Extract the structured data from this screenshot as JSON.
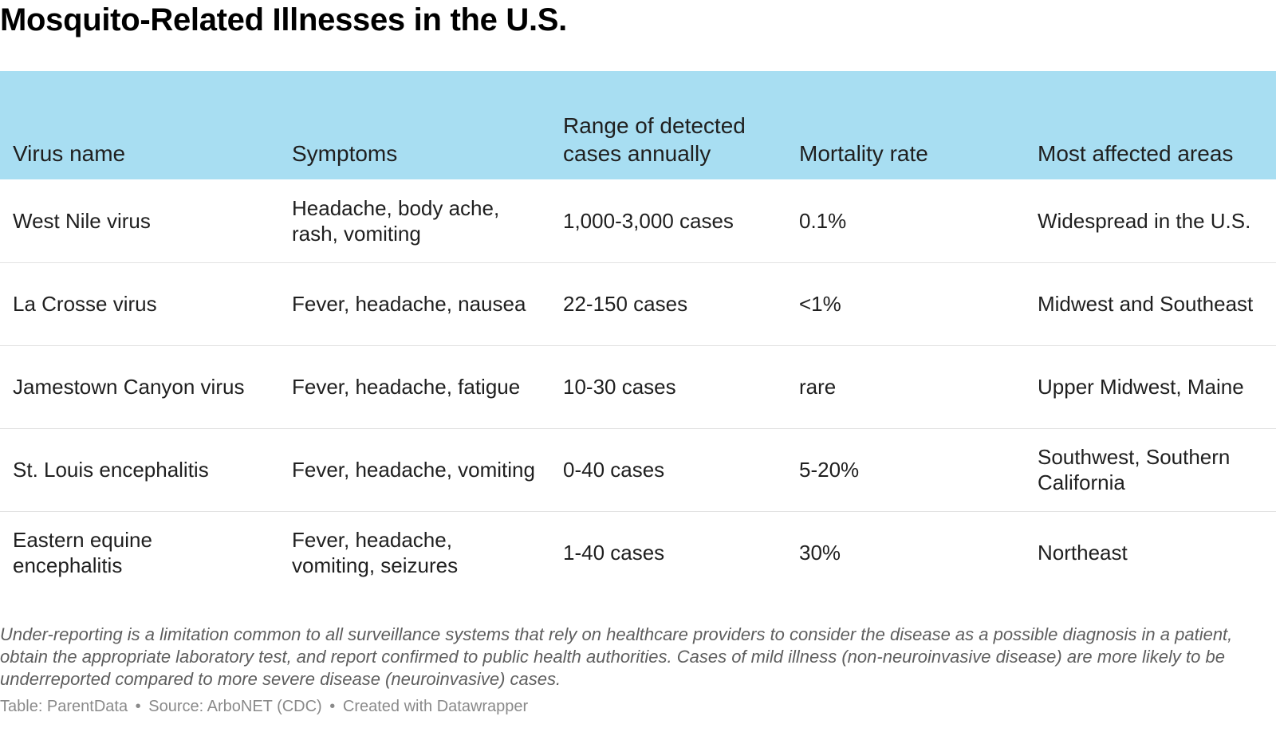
{
  "title": "Mosquito-Related Illnesses in the U.S.",
  "chart_data": {
    "type": "table",
    "title": "Mosquito-Related Illnesses in the U.S.",
    "columns": [
      "Virus name",
      "Symptoms",
      "Range of detected cases annually",
      "Mortality rate",
      "Most affected areas"
    ],
    "rows": [
      [
        "West Nile virus",
        "Headache, body ache, rash, vomiting",
        "1,000-3,000 cases",
        "0.1%",
        "Widespread in the U.S."
      ],
      [
        "La Crosse virus",
        "Fever, headache, nausea",
        "22-150 cases",
        "<1%",
        "Midwest and Southeast"
      ],
      [
        "Jamestown Canyon virus",
        "Fever, headache, fatigue",
        "10-30 cases",
        "rare",
        "Upper Midwest, Maine"
      ],
      [
        "St. Louis encephalitis",
        "Fever, headache, vomiting",
        "0-40 cases",
        "5-20%",
        "Southwest, Southern California"
      ],
      [
        "Eastern equine encephalitis",
        "Fever, headache, vomiting, seizures",
        "1-40 cases",
        "30%",
        "Northeast"
      ]
    ]
  },
  "note": "Under-reporting is a limitation common to all surveillance systems that rely on healthcare providers to consider the disease as a possible diagnosis in a patient, obtain the appropriate laboratory test, and report confirmed to public health authorities. Cases of mild illness (non-neuroinvasive disease) are more likely to be underreported compared to more severe disease (neuroinvasive) cases.",
  "footer": {
    "credit": "Table: ParentData",
    "source": "Source: ArboNET (CDC)",
    "tool": "Created with Datawrapper",
    "separator": "•"
  },
  "colors": {
    "header_background": "#a8def2",
    "row_divider": "#e2e2e2",
    "note_text": "#5e5e5e",
    "footer_text": "#8a8a8a"
  }
}
